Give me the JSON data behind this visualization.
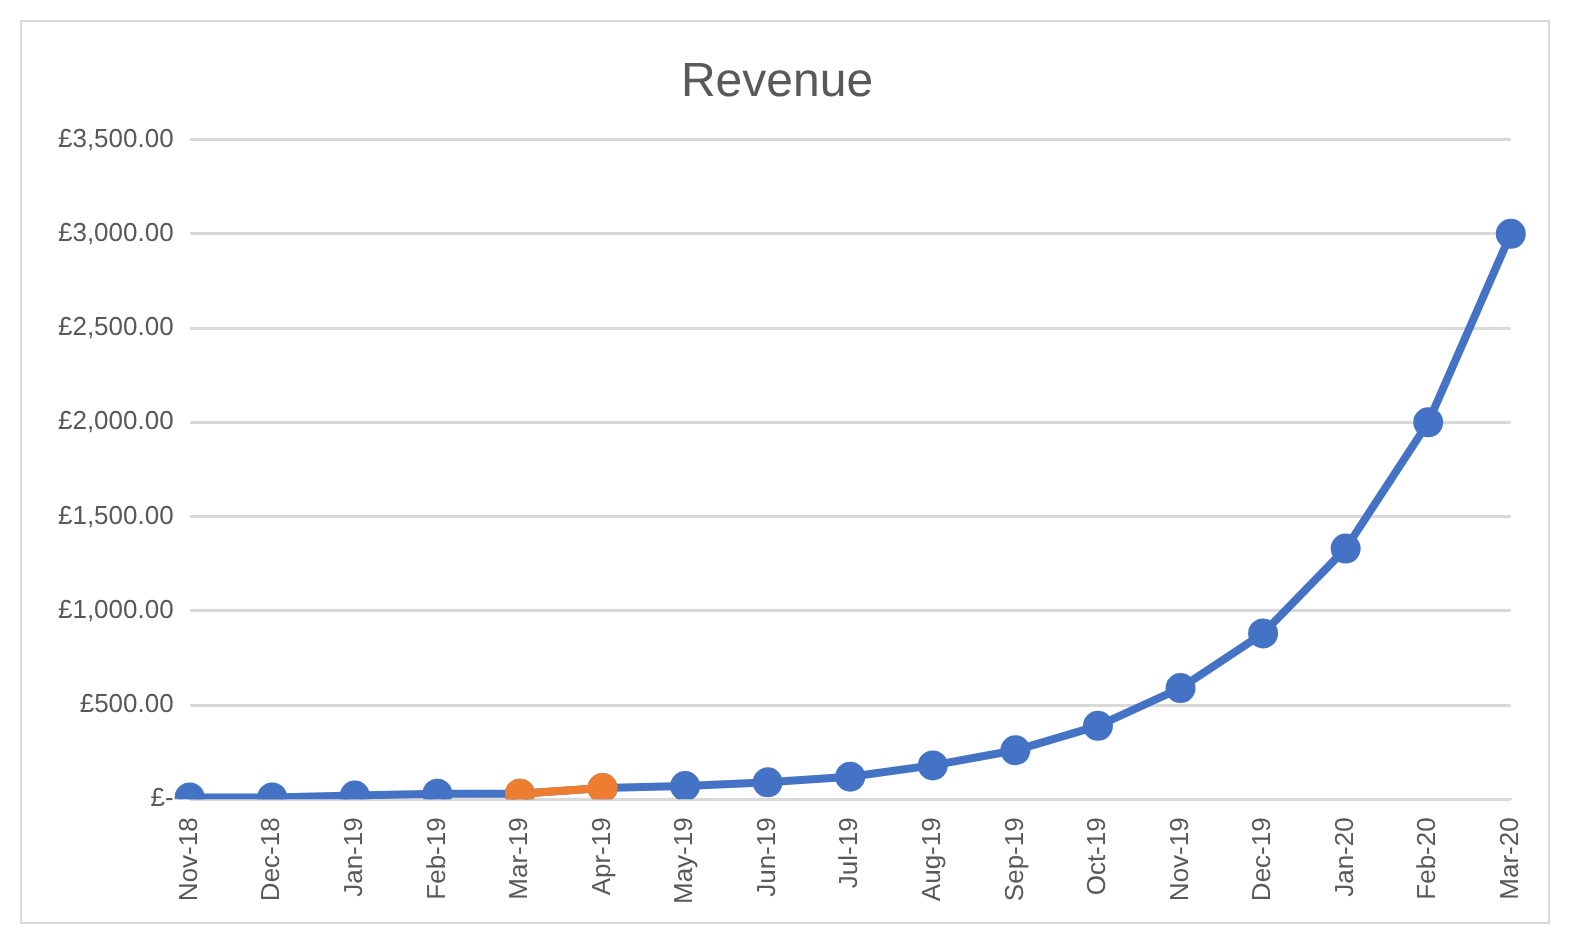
{
  "chart_data": {
    "type": "line",
    "title": "Revenue",
    "categories": [
      "Nov-18",
      "Dec-18",
      "Jan-19",
      "Feb-19",
      "Mar-19",
      "Apr-19",
      "May-19",
      "Jun-19",
      "Jul-19",
      "Aug-19",
      "Sep-19",
      "Oct-19",
      "Nov-19",
      "Dec-19",
      "Jan-20",
      "Feb-20",
      "Mar-20"
    ],
    "series": [
      {
        "color": "#4472c4",
        "values": [
          10,
          10,
          20,
          30,
          30,
          60,
          70,
          90,
          120,
          180,
          260,
          390,
          590,
          880,
          1330,
          2000,
          3000
        ]
      },
      {
        "color": "#ed7d31",
        "values": [
          null,
          null,
          null,
          null,
          30,
          60,
          null,
          null,
          null,
          null,
          null,
          null,
          null,
          null,
          null,
          null,
          null
        ]
      }
    ],
    "ylim": [
      0,
      3500
    ],
    "yticks": [
      {
        "value": 0,
        "label": "£-"
      },
      {
        "value": 500,
        "label": "£500.00"
      },
      {
        "value": 1000,
        "label": "£1,000.00"
      },
      {
        "value": 1500,
        "label": "£1,500.00"
      },
      {
        "value": 2000,
        "label": "£2,000.00"
      },
      {
        "value": 2500,
        "label": "£2,500.00"
      },
      {
        "value": 3000,
        "label": "£3,000.00"
      },
      {
        "value": 3500,
        "label": "£3,500.00"
      }
    ],
    "grid": "y",
    "legend": false,
    "marker": "circle",
    "line_style": "solid"
  }
}
